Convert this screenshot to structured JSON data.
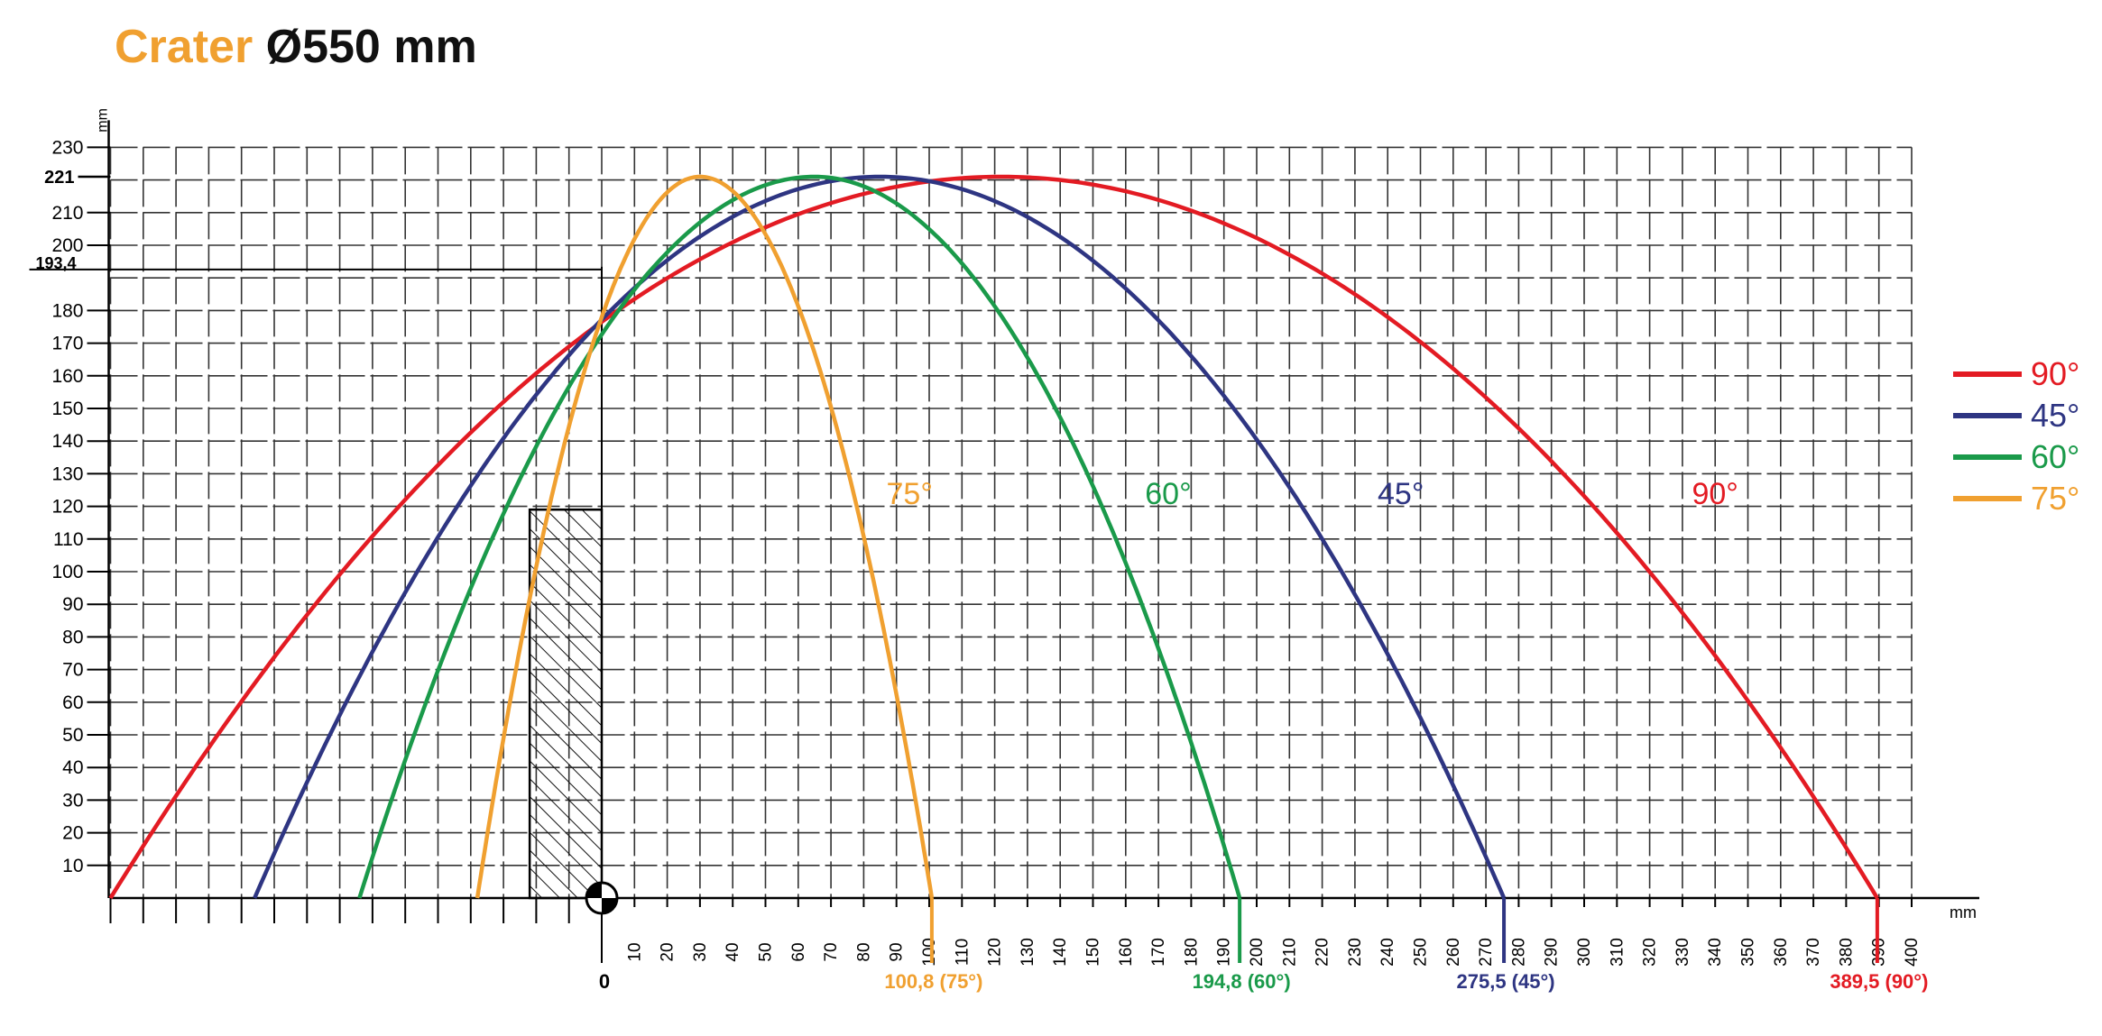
{
  "title": {
    "brand": "Crater",
    "text": "Ø550 mm"
  },
  "chart_data": {
    "type": "line",
    "x_unit": "mm",
    "y_unit": "mm",
    "xlim": [
      -150,
      400
    ],
    "ylim": [
      0,
      230
    ],
    "x_ticks": [
      10,
      20,
      30,
      40,
      50,
      60,
      70,
      80,
      90,
      100,
      110,
      120,
      130,
      140,
      150,
      160,
      170,
      180,
      190,
      200,
      210,
      220,
      230,
      240,
      250,
      260,
      270,
      280,
      290,
      300,
      310,
      320,
      330,
      340,
      350,
      360,
      370,
      380,
      390,
      400
    ],
    "x_zero_label": "0",
    "y_ticks": [
      10,
      20,
      30,
      40,
      50,
      60,
      70,
      80,
      90,
      100,
      110,
      120,
      130,
      140,
      150,
      160,
      170,
      180,
      200,
      210,
      230
    ],
    "y_special_ticks": [
      "193,4",
      "221"
    ],
    "nozzle_height": 193.4,
    "peak_height": 221,
    "obstacle": {
      "x_from": -22,
      "x_to": 0,
      "height": 119
    },
    "series": [
      {
        "name": "90°",
        "color": "#e31b23",
        "x_start": -150,
        "x_peak": 122,
        "x_end": 389.5,
        "end_label": "389,5 (90°)",
        "curve_label": "90°",
        "curve_label_x": 340,
        "curve_label_y": 124
      },
      {
        "name": "45°",
        "color": "#2e3582",
        "x_start": -106,
        "x_peak": 85,
        "x_end": 275.5,
        "end_label": "275,5 (45°)",
        "curve_label": "45°",
        "curve_label_x": 244,
        "curve_label_y": 124
      },
      {
        "name": "60°",
        "color": "#1a9a4a",
        "x_start": -74,
        "x_peak": 65,
        "x_end": 194.8,
        "end_label": "194,8 (60°)",
        "curve_label": "60°",
        "curve_label_x": 173,
        "curve_label_y": 124
      },
      {
        "name": "75°",
        "color": "#f0a030",
        "x_start": -38,
        "x_peak": 30,
        "x_end": 100.8,
        "end_label": "100,8 (75°)",
        "curve_label": "75°",
        "curve_label_x": 94,
        "curve_label_y": 124
      }
    ],
    "legend_order": [
      "90°",
      "45°",
      "60°",
      "75°"
    ],
    "legend_position": "right"
  }
}
